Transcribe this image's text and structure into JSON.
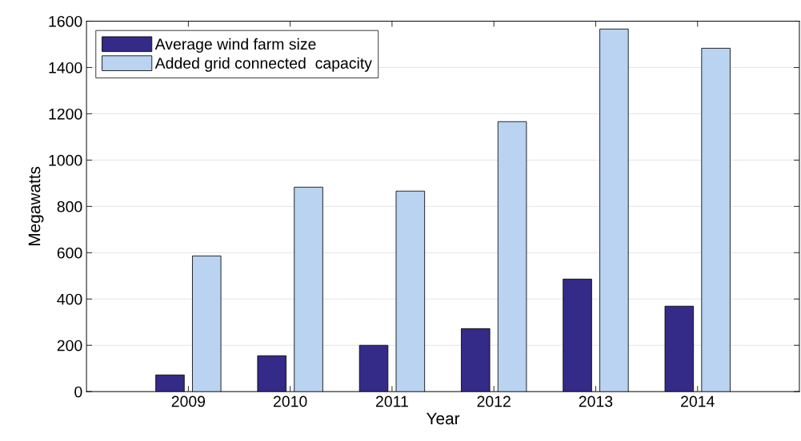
{
  "chart_data": {
    "type": "bar",
    "xlabel": "Year",
    "ylabel": "Megawatts",
    "x": [
      2009,
      2010,
      2011,
      2012,
      2013,
      2014
    ],
    "series": [
      {
        "name": "Average wind farm size",
        "color": "#342a87",
        "values": [
          72,
          155,
          200,
          272,
          486,
          369
        ]
      },
      {
        "name": "Added grid connected  capacity",
        "color": "#b9d3f1",
        "values": [
          586,
          883,
          866,
          1166,
          1566,
          1483
        ]
      }
    ],
    "xlim": [
      2008,
      2015
    ],
    "xticks": [
      2009,
      2010,
      2011,
      2012,
      2013,
      2014
    ],
    "ylim": [
      0,
      1600
    ],
    "yticks": [
      0,
      200,
      400,
      600,
      800,
      1000,
      1200,
      1400,
      1600
    ],
    "grid": "y",
    "legend": "top left"
  }
}
